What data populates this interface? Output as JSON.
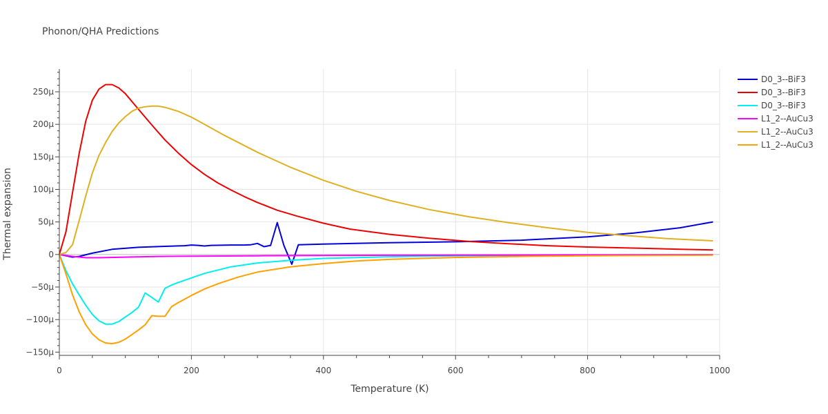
{
  "chart_data": {
    "type": "line",
    "title": "Phonon/QHA Predictions",
    "xlabel": "Temperature (K)",
    "ylabel": "Thermal expansion",
    "xlim": [
      0,
      1000
    ],
    "ylim": [
      -0.000155,
      0.000285
    ],
    "xticks": [
      0,
      200,
      400,
      600,
      800,
      1000
    ],
    "xtick_labels": [
      "0",
      "200",
      "400",
      "600",
      "800",
      "1000"
    ],
    "yticks": [
      -0.00015,
      -0.0001,
      -5e-05,
      0,
      5e-05,
      0.0001,
      0.00015,
      0.0002,
      0.00025
    ],
    "ytick_labels": [
      "−150μ",
      "−100μ",
      "−50μ",
      "0",
      "50μ",
      "100μ",
      "150μ",
      "200μ",
      "250μ"
    ],
    "legend_position": "top-right",
    "series": [
      {
        "name": "D0_3--BiF3",
        "color": "#0000dd",
        "x": [
          0,
          10,
          20,
          30,
          50,
          80,
          120,
          160,
          190,
          200,
          210,
          220,
          230,
          260,
          280,
          290,
          300,
          310,
          320,
          330,
          340,
          352,
          362,
          400,
          500,
          600,
          700,
          800,
          870,
          940,
          990
        ],
        "y": [
          0,
          -2e-06,
          -4e-06,
          -3e-06,
          2e-06,
          8e-06,
          1.1e-05,
          1.25e-05,
          1.35e-05,
          1.45e-05,
          1.4e-05,
          1.3e-05,
          1.4e-05,
          1.45e-05,
          1.45e-05,
          1.5e-05,
          1.7e-05,
          1.2e-05,
          1.4e-05,
          4.9e-05,
          1.4e-05,
          -1.5e-05,
          1.5e-05,
          1.6e-05,
          1.8e-05,
          1.95e-05,
          2.2e-05,
          2.7e-05,
          3.3e-05,
          4.1e-05,
          5e-05
        ]
      },
      {
        "name": "D0_3--BiF3",
        "color": "#ee0000",
        "x": [
          0,
          10,
          20,
          30,
          40,
          50,
          60,
          70,
          80,
          90,
          100,
          120,
          140,
          160,
          180,
          200,
          220,
          240,
          260,
          280,
          300,
          330,
          360,
          400,
          440,
          500,
          560,
          620,
          680,
          740,
          800,
          880,
          940,
          990
        ],
        "y": [
          0,
          3.5e-05,
          9.5e-05,
          0.000155,
          0.000205,
          0.000237,
          0.000254,
          0.000261,
          0.000261,
          0.000256,
          0.000247,
          0.000223,
          0.000199,
          0.000176,
          0.000156,
          0.000138,
          0.000123,
          0.00011,
          9.9e-05,
          8.9e-05,
          8e-05,
          6.8e-05,
          5.9e-05,
          4.8e-05,
          3.9e-05,
          3.1e-05,
          2.5e-05,
          2e-05,
          1.65e-05,
          1.35e-05,
          1.15e-05,
          9.5e-06,
          8e-06,
          7e-06
        ]
      },
      {
        "name": "D0_3--BiF3",
        "color": "#00eeee",
        "x": [
          0,
          10,
          20,
          30,
          40,
          50,
          60,
          70,
          80,
          90,
          100,
          110,
          120,
          130,
          140,
          150,
          160,
          170,
          180,
          200,
          220,
          260,
          300,
          350,
          400,
          500,
          600,
          700,
          800,
          900,
          990
        ],
        "y": [
          0,
          -2.5e-05,
          -4.5e-05,
          -6.2e-05,
          -7.8e-05,
          -9.2e-05,
          -0.000102,
          -0.000107,
          -0.000107,
          -0.000103,
          -9.6e-05,
          -8.9e-05,
          -8.1e-05,
          -5.9e-05,
          -6.6e-05,
          -7.3e-05,
          -5.2e-05,
          -4.7e-05,
          -4.3e-05,
          -3.6e-05,
          -2.9e-05,
          -1.9e-05,
          -1.3e-05,
          -9e-06,
          -6e-06,
          -3.5e-06,
          -2e-06,
          -1.2e-06,
          -8e-07,
          -5e-07,
          -3e-07
        ]
      },
      {
        "name": "L1_2--AuCu3",
        "color": "#ff00ff",
        "x": [
          0,
          20,
          40,
          60,
          100,
          150,
          200,
          300,
          400,
          500,
          600,
          700,
          800,
          900,
          990
        ],
        "y": [
          0,
          -3e-06,
          -5e-06,
          -5e-06,
          -4e-06,
          -3e-06,
          -2.5e-06,
          -2e-06,
          -1.5e-06,
          -1.2e-06,
          -1e-06,
          -8e-07,
          -6e-07,
          -5e-07,
          -4e-07
        ]
      },
      {
        "name": "L1_2--AuCu3",
        "color": "#e0b020",
        "x": [
          0,
          10,
          20,
          30,
          40,
          50,
          60,
          70,
          80,
          90,
          100,
          110,
          120,
          130,
          140,
          150,
          160,
          180,
          200,
          220,
          250,
          300,
          350,
          400,
          450,
          500,
          560,
          620,
          680,
          740,
          800,
          860,
          920,
          990
        ],
        "y": [
          0,
          3e-06,
          1.5e-05,
          5.2e-05,
          9e-05,
          0.000125,
          0.000152,
          0.000172,
          0.000189,
          0.000202,
          0.000212,
          0.00022,
          0.000225,
          0.000227,
          0.000228,
          0.000228,
          0.000226,
          0.00022,
          0.000211,
          0.0002,
          0.000183,
          0.000157,
          0.000134,
          0.000114,
          9.7e-05,
          8.3e-05,
          6.9e-05,
          5.8e-05,
          4.9e-05,
          4.1e-05,
          3.4e-05,
          2.9e-05,
          2.45e-05,
          2.1e-05
        ]
      },
      {
        "name": "L1_2--AuCu3",
        "color": "#ffa000",
        "x": [
          0,
          10,
          20,
          30,
          40,
          50,
          60,
          70,
          80,
          90,
          100,
          110,
          120,
          130,
          140,
          150,
          160,
          170,
          180,
          200,
          220,
          240,
          270,
          300,
          350,
          400,
          450,
          500,
          600,
          700,
          800,
          900,
          990
        ],
        "y": [
          0,
          -3e-05,
          -6.2e-05,
          -8.8e-05,
          -0.000108,
          -0.000122,
          -0.000131,
          -0.000136,
          -0.000137,
          -0.000135,
          -0.00013,
          -0.000123,
          -0.000116,
          -0.000108,
          -9.4e-05,
          -9.5e-05,
          -9.5e-05,
          -8e-05,
          -7.4e-05,
          -6.3e-05,
          -5.3e-05,
          -4.5e-05,
          -3.5e-05,
          -2.7e-05,
          -1.9e-05,
          -1.4e-05,
          -1e-05,
          -7.5e-06,
          -4.5e-06,
          -3e-06,
          -2e-06,
          -1.5e-06,
          -1.2e-06
        ]
      }
    ]
  }
}
